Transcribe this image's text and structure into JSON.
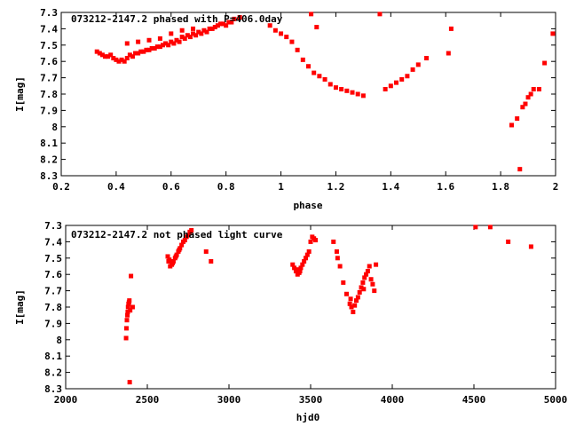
{
  "chart_data": [
    {
      "type": "scatter",
      "title": "073212-2147.2 phased with P=406.0day",
      "xlabel": "phase",
      "ylabel": "I[mag]",
      "xlim": [
        0.2,
        2.0
      ],
      "ylim": [
        8.3,
        7.3
      ],
      "y_inverted": true,
      "xticks": [
        "0.2",
        "0.4",
        "0.6",
        "0.8",
        "1",
        "1.2",
        "1.4",
        "1.6",
        "1.8",
        "2"
      ],
      "yticks": [
        "7.3",
        "7.4",
        "7.5",
        "7.6",
        "7.7",
        "7.8",
        "7.9",
        "8",
        "8.1",
        "8.2",
        "8.3"
      ],
      "grid": false,
      "marker_color": "#ff0000",
      "series": [
        {
          "x": [
            0.33,
            0.35,
            0.37,
            0.39,
            0.41,
            0.43,
            0.45,
            0.47,
            0.49,
            0.51,
            0.53,
            0.55,
            0.57,
            0.59,
            0.61,
            0.63,
            0.65,
            0.67,
            0.69,
            0.71,
            0.73,
            0.75,
            0.77,
            0.79,
            0.81,
            0.83,
            0.85,
            0.34,
            0.36,
            0.38,
            0.4,
            0.42,
            0.44,
            0.46,
            0.48,
            0.5,
            0.52,
            0.54,
            0.56,
            0.58,
            0.6,
            0.62,
            0.64,
            0.66,
            0.68,
            0.7,
            0.72,
            0.74,
            0.76,
            0.78,
            0.8,
            0.82,
            0.44,
            0.48,
            0.52,
            0.56,
            0.6,
            0.64,
            0.68,
            0.96,
            0.98,
            1.0,
            1.02,
            1.04,
            1.06,
            1.08,
            1.1,
            1.12,
            1.14,
            1.16,
            1.18,
            1.2,
            1.22,
            1.24,
            1.26,
            1.28,
            1.3,
            1.11,
            1.13,
            1.36,
            1.38,
            1.4,
            1.42,
            1.44,
            1.46,
            1.48,
            1.5,
            1.53,
            1.61,
            1.62,
            1.84,
            1.86,
            1.87,
            1.88,
            1.89,
            1.9,
            1.91,
            1.92,
            1.94,
            1.96,
            1.99
          ],
          "y": [
            7.54,
            7.56,
            7.57,
            7.58,
            7.6,
            7.6,
            7.56,
            7.55,
            7.54,
            7.53,
            7.52,
            7.51,
            7.5,
            7.5,
            7.49,
            7.48,
            7.46,
            7.45,
            7.44,
            7.43,
            7.42,
            7.4,
            7.38,
            7.37,
            7.36,
            7.34,
            7.33,
            7.55,
            7.57,
            7.56,
            7.59,
            7.59,
            7.58,
            7.57,
            7.55,
            7.54,
            7.53,
            7.52,
            7.51,
            7.49,
            7.48,
            7.47,
            7.45,
            7.44,
            7.43,
            7.42,
            7.41,
            7.4,
            7.39,
            7.37,
            7.38,
            7.36,
            7.49,
            7.48,
            7.47,
            7.46,
            7.43,
            7.41,
            7.4,
            7.38,
            7.41,
            7.43,
            7.45,
            7.48,
            7.53,
            7.59,
            7.63,
            7.67,
            7.69,
            7.71,
            7.74,
            7.76,
            7.77,
            7.78,
            7.79,
            7.8,
            7.81,
            7.31,
            7.39,
            7.31,
            7.77,
            7.75,
            7.73,
            7.71,
            7.69,
            7.65,
            7.62,
            7.58,
            7.55,
            7.4,
            7.99,
            7.95,
            8.26,
            7.88,
            7.86,
            7.82,
            7.8,
            7.77,
            7.77,
            7.61,
            7.43
          ]
        }
      ]
    },
    {
      "type": "scatter",
      "title": "073212-2147.2 not phased light curve",
      "xlabel": "hjd0",
      "ylabel": "I[mag]",
      "xlim": [
        2000,
        5000
      ],
      "ylim": [
        8.3,
        7.3
      ],
      "y_inverted": true,
      "xticks": [
        "2000",
        "2500",
        "3000",
        "3500",
        "4000",
        "4500",
        "5000"
      ],
      "yticks": [
        "7.3",
        "7.4",
        "7.5",
        "7.6",
        "7.7",
        "7.8",
        "7.9",
        "8",
        "8.1",
        "8.2",
        "8.3"
      ],
      "grid": false,
      "marker_color": "#ff0000",
      "series": [
        {
          "x": [
            2370,
            2372,
            2375,
            2378,
            2380,
            2382,
            2385,
            2388,
            2390,
            2392,
            2395,
            2400,
            2410,
            2625,
            2630,
            2640,
            2650,
            2660,
            2670,
            2680,
            2690,
            2700,
            2710,
            2720,
            2730,
            2740,
            2750,
            2760,
            2770,
            2635,
            2655,
            2675,
            2695,
            2860,
            2890,
            3390,
            3400,
            3410,
            3420,
            3430,
            3440,
            3450,
            3460,
            3470,
            3480,
            3490,
            3500,
            3510,
            3520,
            3530,
            3415,
            3435,
            3640,
            3660,
            3680,
            3700,
            3720,
            3740,
            3750,
            3760,
            3770,
            3780,
            3790,
            3800,
            3810,
            3820,
            3830,
            3840,
            3850,
            3860,
            3870,
            3880,
            3890,
            3900,
            3665,
            3745,
            3825,
            4510,
            4600,
            4710,
            4850
          ],
          "y": [
            7.99,
            7.93,
            7.88,
            7.85,
            7.83,
            7.8,
            7.78,
            7.77,
            7.76,
            8.26,
            7.82,
            7.61,
            7.8,
            7.49,
            7.52,
            7.55,
            7.54,
            7.52,
            7.5,
            7.48,
            7.46,
            7.44,
            7.42,
            7.4,
            7.39,
            7.37,
            7.36,
            7.34,
            7.33,
            7.51,
            7.53,
            7.49,
            7.45,
            7.46,
            7.52,
            7.54,
            7.56,
            7.58,
            7.6,
            7.59,
            7.56,
            7.54,
            7.52,
            7.5,
            7.48,
            7.46,
            7.4,
            7.37,
            7.38,
            7.39,
            7.57,
            7.58,
            7.4,
            7.46,
            7.55,
            7.65,
            7.72,
            7.78,
            7.8,
            7.83,
            7.79,
            7.76,
            7.74,
            7.71,
            7.68,
            7.65,
            7.62,
            7.6,
            7.58,
            7.55,
            7.63,
            7.66,
            7.7,
            7.54,
            7.5,
            7.75,
            7.69,
            7.31,
            7.31,
            7.4,
            7.43
          ]
        }
      ]
    }
  ]
}
